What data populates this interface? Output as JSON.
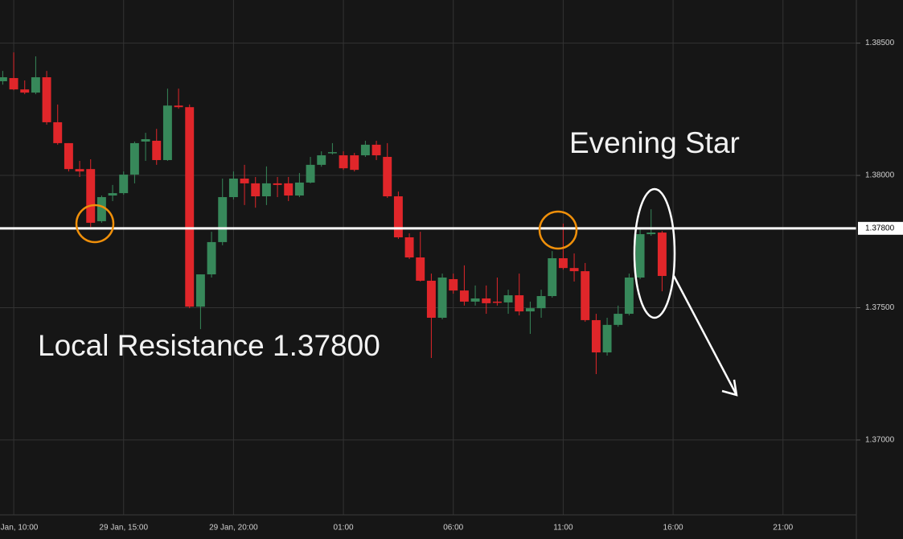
{
  "chart_data": {
    "type": "candlestick",
    "annotations": [
      "Evening Star",
      "Local Resistance 1.37800"
    ],
    "categories": [
      null,
      "Jan, 10:00",
      null,
      null,
      null,
      null,
      null,
      null,
      null,
      null,
      null,
      "29 Jan, 15:00",
      null,
      null,
      null,
      null,
      null,
      null,
      null,
      null,
      null,
      "29 Jan, 20:00",
      null,
      null,
      null,
      null,
      null,
      null,
      null,
      null,
      null,
      "01:00",
      null,
      null,
      null,
      null,
      null,
      null,
      null,
      null,
      null,
      "06:00",
      null,
      null,
      null,
      null,
      null,
      null,
      null,
      null,
      null,
      "11:00",
      null,
      null,
      null,
      null,
      null,
      null,
      null,
      null,
      null,
      "16:00",
      null,
      null,
      null,
      null,
      null,
      null,
      null,
      null,
      null,
      "21:00",
      null,
      null,
      null,
      null,
      null,
      null
    ],
    "open": [
      1.38356,
      1.38368,
      1.38325,
      1.38313,
      1.38371,
      1.38201,
      1.38122,
      1.38024,
      1.38024,
      1.37827,
      1.37924,
      1.37933,
      1.38003,
      1.38128,
      1.38131,
      1.38058,
      1.38264,
      1.38258,
      1.37504,
      1.37626,
      1.37748,
      1.37918,
      1.37988,
      1.3797,
      1.37921,
      1.3797,
      1.3797,
      1.37924,
      1.37973,
      1.3804,
      1.38085,
      1.38076,
      1.38076,
      1.38076,
      1.38116,
      1.3807,
      1.37921,
      1.37766,
      1.3769,
      1.37602,
      1.37462,
      1.37608,
      1.37565,
      1.37523,
      1.37535,
      1.37523,
      1.3752,
      1.37547,
      1.37486,
      1.37498,
      1.37544,
      1.37687,
      1.3765,
      1.37638,
      1.37453,
      1.37331,
      1.37435,
      1.37477,
      1.37614,
      1.37778,
      1.37784,
      null,
      null,
      null,
      null,
      null,
      null,
      null,
      null,
      null,
      null,
      null,
      null,
      null,
      null,
      null,
      null,
      null
    ],
    "high": [
      1.38395,
      1.38465,
      1.38359,
      1.3845,
      1.38395,
      1.38268,
      1.38122,
      1.38055,
      1.38061,
      1.37924,
      1.37964,
      1.38015,
      1.38128,
      1.38161,
      1.38176,
      1.38328,
      1.38328,
      1.38268,
      1.37626,
      1.37787,
      1.37988,
      1.38015,
      1.3804,
      1.37994,
      1.38034,
      1.37994,
      1.37994,
      1.38009,
      1.3807,
      1.38091,
      1.38122,
      1.38091,
      1.38085,
      1.38131,
      1.38131,
      1.38122,
      1.37939,
      1.37781,
      1.37787,
      1.37629,
      1.37629,
      1.37629,
      1.3766,
      1.37584,
      1.37584,
      1.37614,
      1.37568,
      1.37629,
      1.37523,
      1.37568,
      1.37714,
      1.37818,
      1.37705,
      1.37669,
      1.37477,
      1.37462,
      1.37508,
      1.37629,
      1.37796,
      1.37872,
      1.3779,
      null,
      null,
      null,
      null,
      null,
      null,
      null,
      null,
      null,
      null,
      null,
      null,
      null,
      null,
      null,
      null,
      null
    ],
    "low": [
      1.38343,
      1.38322,
      1.38307,
      1.38307,
      1.38192,
      1.38116,
      1.38015,
      1.37994,
      1.37805,
      1.37821,
      1.37903,
      1.37927,
      1.3797,
      1.38055,
      1.3804,
      1.38055,
      1.38252,
      1.37498,
      1.37419,
      1.37614,
      1.37736,
      1.37909,
      1.37888,
      1.37878,
      1.37888,
      1.37918,
      1.37903,
      1.37918,
      1.3797,
      1.38033,
      1.38079,
      1.38021,
      1.38015,
      1.3807,
      1.38058,
      1.37915,
      1.3776,
      1.37684,
      1.37599,
      1.3731,
      1.37456,
      1.37553,
      1.37508,
      1.37508,
      1.37477,
      1.37508,
      1.37477,
      1.37471,
      1.37401,
      1.37462,
      1.37538,
      1.37644,
      1.37599,
      1.37447,
      1.37249,
      1.37319,
      1.37428,
      1.37471,
      1.37608,
      1.37772,
      1.37562,
      null,
      null,
      null,
      null,
      null,
      null,
      null,
      null,
      null,
      null,
      null,
      null,
      null,
      null,
      null,
      null,
      null
    ],
    "close": [
      1.38371,
      1.38325,
      1.38313,
      1.38371,
      1.38201,
      1.38122,
      1.38024,
      1.38015,
      1.37821,
      1.37918,
      1.37933,
      1.38003,
      1.38122,
      1.38137,
      1.38058,
      1.38264,
      1.38258,
      1.37504,
      1.37626,
      1.37748,
      1.37918,
      1.37988,
      1.3797,
      1.37921,
      1.3797,
      1.37964,
      1.37924,
      1.37973,
      1.3804,
      1.38076,
      1.38088,
      1.38027,
      1.38021,
      1.38116,
      1.38076,
      1.37921,
      1.37766,
      1.3769,
      1.37602,
      1.37462,
      1.37614,
      1.37565,
      1.37523,
      1.37535,
      1.37517,
      1.3752,
      1.37547,
      1.37486,
      1.37498,
      1.37544,
      1.37687,
      1.3765,
      1.37638,
      1.37453,
      1.37331,
      1.37435,
      1.37477,
      1.37614,
      1.37778,
      1.37784,
      1.3762,
      null,
      null,
      null,
      null,
      null,
      null,
      null,
      null,
      null,
      null,
      null,
      null,
      null,
      null,
      null,
      null,
      null
    ],
    "up_color": "#37885a",
    "down_color": "#e0262a",
    "ylim": [
      1.36717,
      1.38663
    ],
    "yticks": [
      {
        "value": 1.37,
        "label": "1.37000"
      },
      {
        "value": 1.375,
        "label": "1.37500"
      },
      {
        "value": 1.38,
        "label": "1.38000"
      },
      {
        "value": 1.385,
        "label": "1.38500"
      }
    ],
    "resistance_line": {
      "value": 1.378,
      "label": "1.37800"
    },
    "grid": true
  }
}
